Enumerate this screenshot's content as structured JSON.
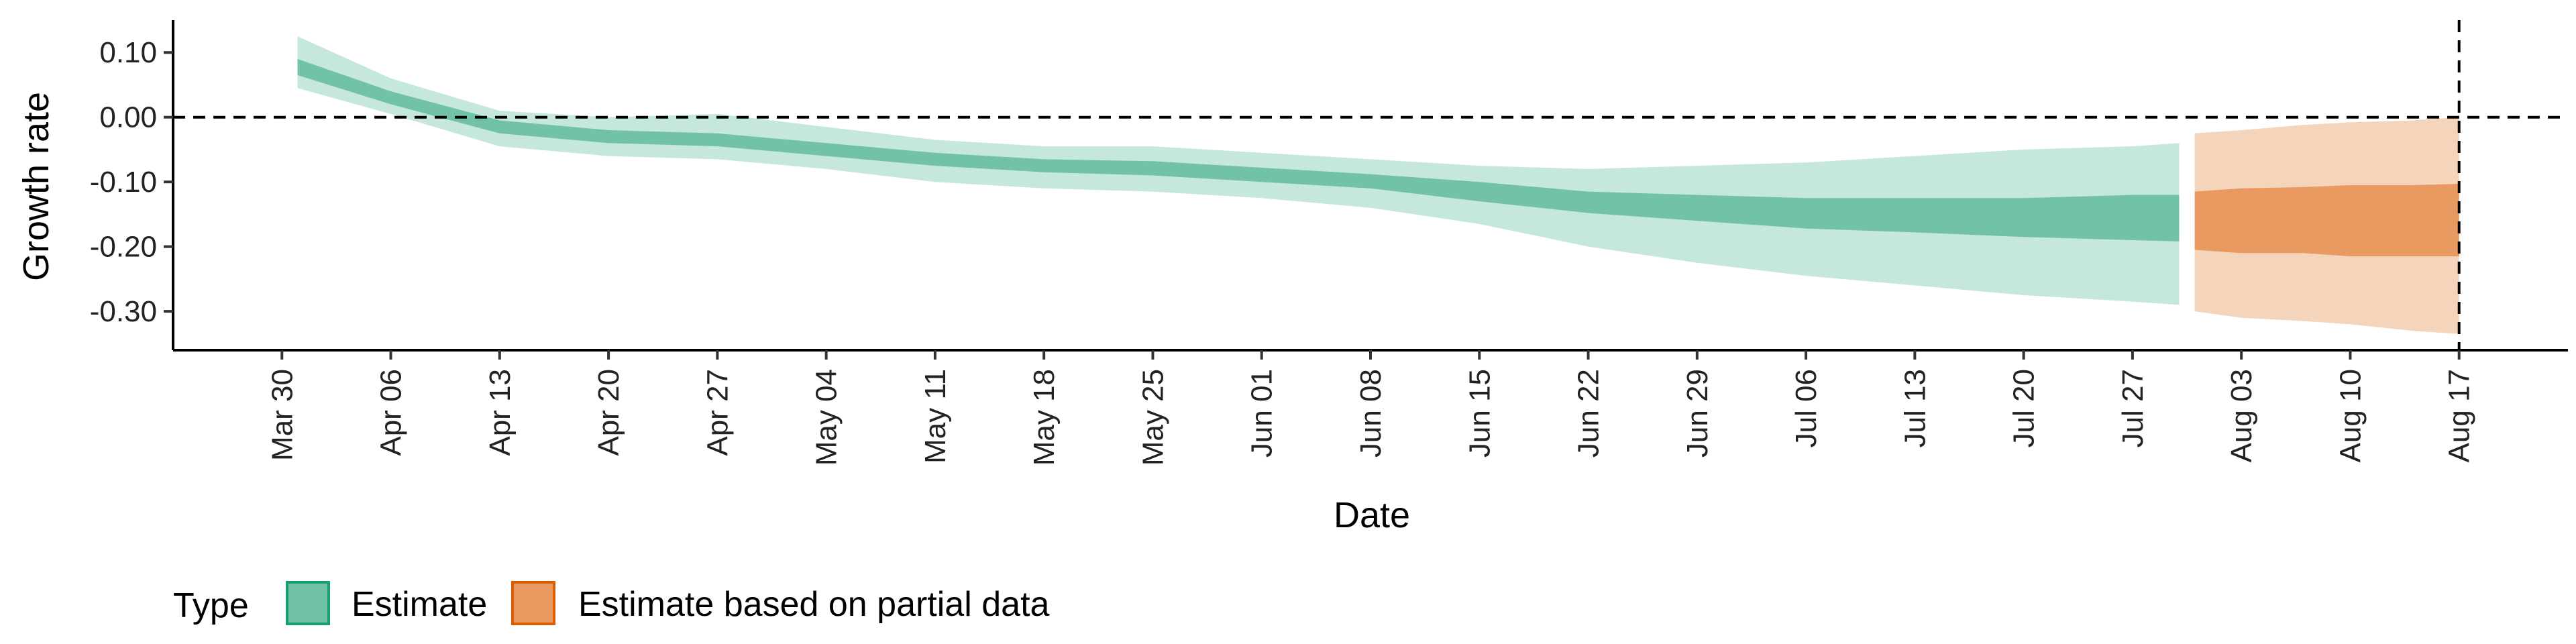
{
  "chart_data": {
    "type": "area",
    "title": "",
    "xlabel": "Date",
    "ylabel": "Growth rate",
    "x_ticks": [
      "Mar 30",
      "Apr 06",
      "Apr 13",
      "Apr 20",
      "Apr 27",
      "May 04",
      "May 11",
      "May 18",
      "May 25",
      "Jun 01",
      "Jun 08",
      "Jun 15",
      "Jun 22",
      "Jun 29",
      "Jul 06",
      "Jul 13",
      "Jul 20",
      "Jul 27",
      "Aug 03",
      "Aug 10",
      "Aug 17"
    ],
    "y_ticks": [
      "0.10",
      "0.00",
      "-0.10",
      "-0.20",
      "-0.30"
    ],
    "ylim": [
      -0.36,
      0.15
    ],
    "xlim": [
      "2020-03-23",
      "2020-08-24"
    ],
    "reference_lines": [
      {
        "axis": "y",
        "value": 0,
        "style": "dashed"
      },
      {
        "axis": "x",
        "value": "2020-08-17",
        "style": "dashed"
      }
    ],
    "legend": {
      "title": "Type",
      "position": "bottom-left",
      "entries": [
        {
          "label": "Estimate",
          "color": "#72c2a8",
          "border": "#1b9e77"
        },
        {
          "label": "Estimate based on partial data",
          "color": "#e89a60",
          "border": "#d95f02"
        }
      ]
    },
    "series": [
      {
        "name": "Estimate",
        "inner_color": "#72c2a8",
        "outer_color": "#c5e7dc",
        "points": [
          {
            "x": "2020-03-31",
            "median": 0.08,
            "lo50": 0.065,
            "hi50": 0.09,
            "lo90": 0.045,
            "hi90": 0.125
          },
          {
            "x": "2020-04-06",
            "median": 0.03,
            "lo50": 0.02,
            "hi50": 0.04,
            "lo90": 0.005,
            "hi90": 0.06
          },
          {
            "x": "2020-04-13",
            "median": -0.015,
            "lo50": -0.025,
            "hi50": -0.005,
            "lo90": -0.045,
            "hi90": 0.01
          },
          {
            "x": "2020-04-20",
            "median": -0.03,
            "lo50": -0.04,
            "hi50": -0.02,
            "lo90": -0.06,
            "hi90": 0.0
          },
          {
            "x": "2020-04-27",
            "median": -0.035,
            "lo50": -0.045,
            "hi50": -0.025,
            "lo90": -0.065,
            "hi90": 0.005
          },
          {
            "x": "2020-05-04",
            "median": -0.05,
            "lo50": -0.06,
            "hi50": -0.04,
            "lo90": -0.08,
            "hi90": -0.015
          },
          {
            "x": "2020-05-11",
            "median": -0.065,
            "lo50": -0.075,
            "hi50": -0.055,
            "lo90": -0.1,
            "hi90": -0.035
          },
          {
            "x": "2020-05-18",
            "median": -0.075,
            "lo50": -0.085,
            "hi50": -0.065,
            "lo90": -0.11,
            "hi90": -0.045
          },
          {
            "x": "2020-05-25",
            "median": -0.08,
            "lo50": -0.09,
            "hi50": -0.068,
            "lo90": -0.115,
            "hi90": -0.045
          },
          {
            "x": "2020-06-01",
            "median": -0.09,
            "lo50": -0.1,
            "hi50": -0.078,
            "lo90": -0.125,
            "hi90": -0.055
          },
          {
            "x": "2020-06-08",
            "median": -0.1,
            "lo50": -0.11,
            "hi50": -0.088,
            "lo90": -0.14,
            "hi90": -0.065
          },
          {
            "x": "2020-06-15",
            "median": -0.115,
            "lo50": -0.13,
            "hi50": -0.1,
            "lo90": -0.165,
            "hi90": -0.075
          },
          {
            "x": "2020-06-22",
            "median": -0.13,
            "lo50": -0.148,
            "hi50": -0.115,
            "lo90": -0.2,
            "hi90": -0.08
          },
          {
            "x": "2020-06-29",
            "median": -0.14,
            "lo50": -0.16,
            "hi50": -0.12,
            "lo90": -0.225,
            "hi90": -0.075
          },
          {
            "x": "2020-07-06",
            "median": -0.148,
            "lo50": -0.172,
            "hi50": -0.125,
            "lo90": -0.245,
            "hi90": -0.07
          },
          {
            "x": "2020-07-13",
            "median": -0.152,
            "lo50": -0.178,
            "hi50": -0.125,
            "lo90": -0.26,
            "hi90": -0.06
          },
          {
            "x": "2020-07-20",
            "median": -0.155,
            "lo50": -0.185,
            "hi50": -0.125,
            "lo90": -0.275,
            "hi90": -0.05
          },
          {
            "x": "2020-07-27",
            "median": -0.155,
            "lo50": -0.19,
            "hi50": -0.12,
            "lo90": -0.285,
            "hi90": -0.045
          },
          {
            "x": "2020-07-30",
            "median": -0.157,
            "lo50": -0.192,
            "hi50": -0.12,
            "lo90": -0.29,
            "hi90": -0.04
          }
        ]
      },
      {
        "name": "Estimate based on partial data",
        "inner_color": "#e89a60",
        "outer_color": "#f5d4bc",
        "points": [
          {
            "x": "2020-07-31",
            "median": -0.157,
            "lo50": -0.205,
            "hi50": -0.115,
            "lo90": -0.3,
            "hi90": -0.025
          },
          {
            "x": "2020-08-03",
            "median": -0.16,
            "lo50": -0.21,
            "hi50": -0.11,
            "lo90": -0.31,
            "hi90": -0.02
          },
          {
            "x": "2020-08-07",
            "median": -0.158,
            "lo50": -0.21,
            "hi50": -0.108,
            "lo90": -0.315,
            "hi90": -0.012
          },
          {
            "x": "2020-08-10",
            "median": -0.16,
            "lo50": -0.215,
            "hi50": -0.105,
            "lo90": -0.32,
            "hi90": -0.008
          },
          {
            "x": "2020-08-14",
            "median": -0.16,
            "lo50": -0.215,
            "hi50": -0.105,
            "lo90": -0.33,
            "hi90": -0.005
          },
          {
            "x": "2020-08-17",
            "median": -0.162,
            "lo50": -0.215,
            "hi50": -0.103,
            "lo90": -0.335,
            "hi90": 0.0
          }
        ]
      }
    ]
  }
}
